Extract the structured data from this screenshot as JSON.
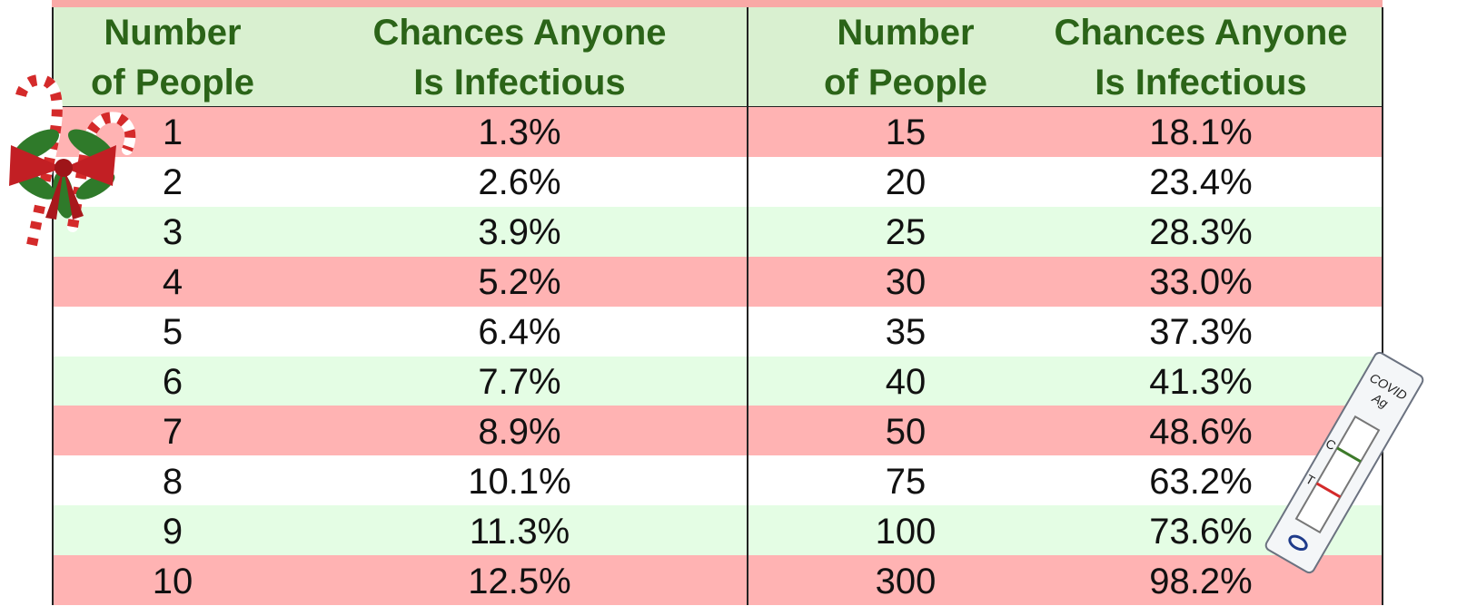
{
  "table": {
    "header": [
      [
        "Number",
        "of People"
      ],
      [
        "Chances Anyone",
        "Is Infectious"
      ],
      [
        "Number",
        "of People"
      ],
      [
        "Chances Anyone",
        "Is Infectious"
      ]
    ],
    "rows": [
      [
        "1",
        "1.3%",
        "15",
        "18.1%"
      ],
      [
        "2",
        "2.6%",
        "20",
        "23.4%"
      ],
      [
        "3",
        "3.9%",
        "25",
        "28.3%"
      ],
      [
        "4",
        "5.2%",
        "30",
        "33.0%"
      ],
      [
        "5",
        "6.4%",
        "35",
        "37.3%"
      ],
      [
        "6",
        "7.7%",
        "40",
        "41.3%"
      ],
      [
        "7",
        "8.9%",
        "50",
        "48.6%"
      ],
      [
        "8",
        "10.1%",
        "75",
        "63.2%"
      ],
      [
        "9",
        "11.3%",
        "100",
        "73.6%"
      ],
      [
        "10",
        "12.5%",
        "300",
        "98.2%"
      ]
    ]
  },
  "test_kit": {
    "name": "COVID",
    "type": "Ag",
    "control": "C",
    "test": "T"
  }
}
